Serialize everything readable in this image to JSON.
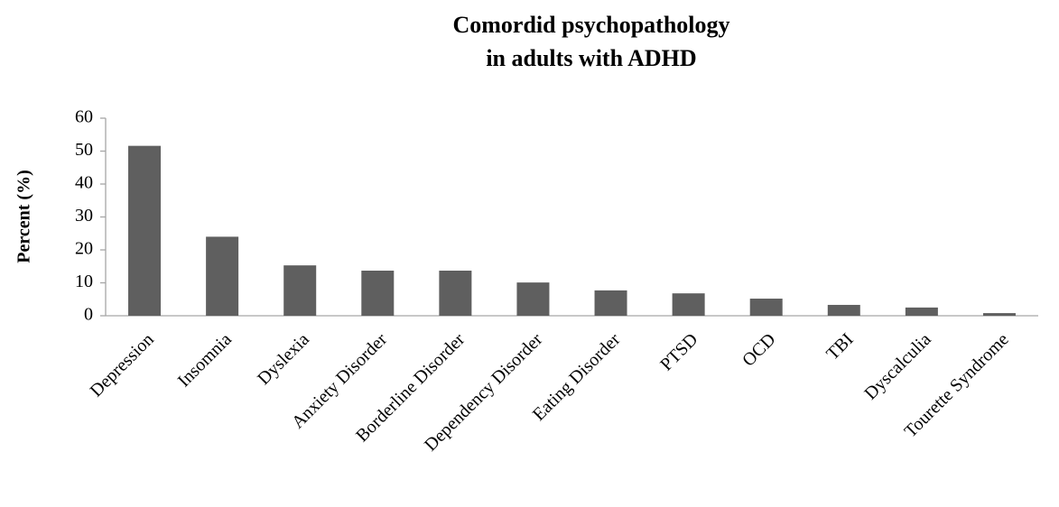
{
  "chart_data": {
    "type": "bar",
    "title": [
      "Comordid psychopathology",
      "in adults with ADHD"
    ],
    "y_label": "Percent (%)",
    "categories": [
      "Depression",
      "Insomnia",
      "Dyslexia",
      "Anxiety Disorder",
      "Borderline Disorder",
      "Dependency Disorder",
      "Eating Disorder",
      "PTSD",
      "OCD",
      "TBI",
      "Dyscalculia",
      "Tourette Syndrome"
    ],
    "values": [
      51.6,
      24,
      15.3,
      13.7,
      13.7,
      10.1,
      7.7,
      6.8,
      5.2,
      3.3,
      2.5,
      0.8
    ],
    "color": "#5f5f5f",
    "ylim": [
      0,
      60
    ],
    "yticks": [
      0,
      10,
      20,
      30,
      40,
      50,
      60
    ],
    "grid": false
  }
}
